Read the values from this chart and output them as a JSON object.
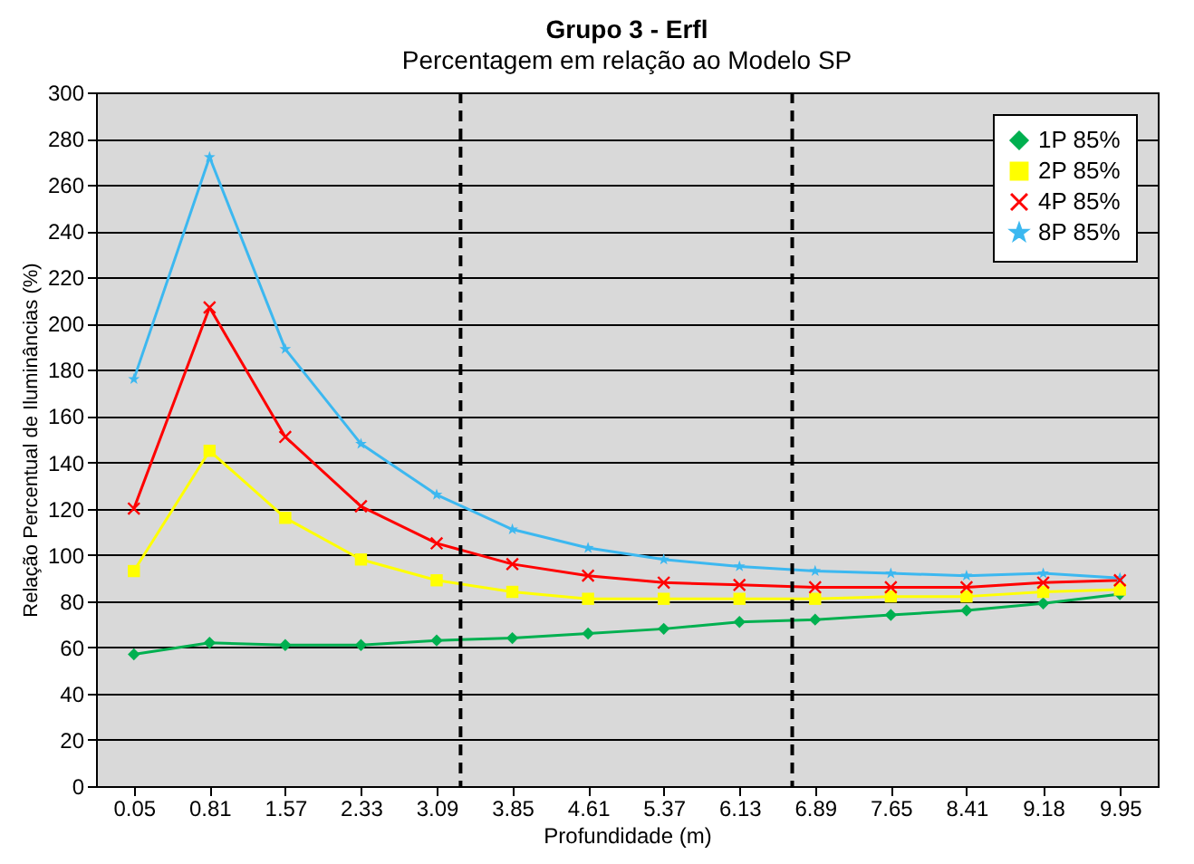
{
  "chart_data": {
    "type": "line",
    "title": "Grupo 3 - Erfl",
    "subtitle": "Percentagem em relação ao Modelo SP",
    "xlabel": "Profundidade (m)",
    "ylabel": "Relação Percentual de Iluminâncias (%)",
    "x": [
      0.05,
      0.81,
      1.57,
      2.33,
      3.09,
      3.85,
      4.61,
      5.37,
      6.13,
      6.89,
      7.65,
      8.41,
      9.18,
      9.95
    ],
    "xlim": [
      -0.33,
      10.33
    ],
    "xticks": [
      0.05,
      0.81,
      1.57,
      2.33,
      3.09,
      3.85,
      4.61,
      5.37,
      6.13,
      6.89,
      7.65,
      8.41,
      9.18,
      9.95
    ],
    "ylim": [
      0,
      300
    ],
    "yticks": [
      0,
      20,
      40,
      60,
      80,
      100,
      120,
      140,
      160,
      180,
      200,
      220,
      240,
      260,
      280,
      300
    ],
    "grid": "y",
    "legend": "top right",
    "line_style": "solid",
    "series": [
      {
        "name": "1P 85%",
        "color": "#00b050",
        "marker": "diamond",
        "values": [
          57,
          62,
          61,
          61,
          63,
          64,
          66,
          68,
          71,
          72,
          74,
          76,
          79,
          83
        ]
      },
      {
        "name": "2P 85%",
        "color": "#ffff00",
        "marker": "square",
        "values": [
          93,
          145,
          116,
          98,
          89,
          84,
          81,
          81,
          81,
          81,
          82,
          82,
          84,
          85
        ]
      },
      {
        "name": "4P 85%",
        "color": "#ff0000",
        "marker": "cross",
        "values": [
          120,
          207,
          151,
          121,
          105,
          96,
          91,
          88,
          87,
          86,
          86,
          86,
          88,
          89
        ]
      },
      {
        "name": "8P 85%",
        "color": "#3cb8f0",
        "marker": "star",
        "values": [
          176,
          272,
          189,
          148,
          126,
          111,
          103,
          98,
          95,
          93,
          92,
          91,
          92,
          90
        ]
      }
    ],
    "ref_lines": [
      {
        "axis": "x",
        "value": 3.33,
        "color": "#000000",
        "line_style": "dashed"
      },
      {
        "axis": "x",
        "value": 6.66,
        "color": "#000000",
        "line_style": "dashed"
      }
    ]
  }
}
